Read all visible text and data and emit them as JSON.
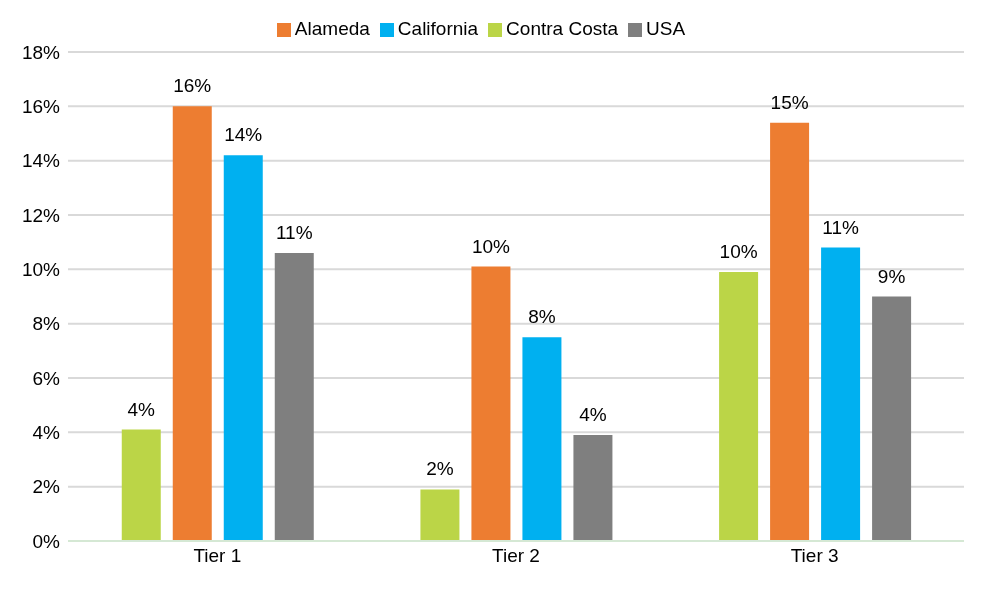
{
  "chart_data": {
    "type": "bar",
    "categories": [
      "Tier 1",
      "Tier 2",
      "Tier 3"
    ],
    "series": [
      {
        "name": "Contra Costa",
        "color": "#bbd547",
        "values": [
          4.1,
          1.9,
          9.9
        ],
        "value_labels": [
          "4%",
          "2%",
          "10%"
        ]
      },
      {
        "name": "Alameda",
        "color": "#ed7d31",
        "values": [
          16.0,
          10.1,
          15.4
        ],
        "value_labels": [
          "16%",
          "10%",
          "15%"
        ]
      },
      {
        "name": "California",
        "color": "#00b0f0",
        "values": [
          14.2,
          7.5,
          10.8
        ],
        "value_labels": [
          "14%",
          "8%",
          "11%"
        ]
      },
      {
        "name": "USA",
        "color": "#7f7f7f",
        "values": [
          10.6,
          3.9,
          9.0
        ],
        "value_labels": [
          "11%",
          "4%",
          "9%"
        ]
      }
    ],
    "ylim": [
      0,
      18
    ],
    "yticks": [
      {
        "value": 0,
        "label": "0%"
      },
      {
        "value": 2,
        "label": "2%"
      },
      {
        "value": 4,
        "label": "4%"
      },
      {
        "value": 6,
        "label": "6%"
      },
      {
        "value": 8,
        "label": "8%"
      },
      {
        "value": 10,
        "label": "10%"
      },
      {
        "value": 12,
        "label": "12%"
      },
      {
        "value": 14,
        "label": "14%"
      },
      {
        "value": 16,
        "label": "16%"
      },
      {
        "value": 18,
        "label": "18%"
      }
    ],
    "grid": "y",
    "legend": "top"
  }
}
